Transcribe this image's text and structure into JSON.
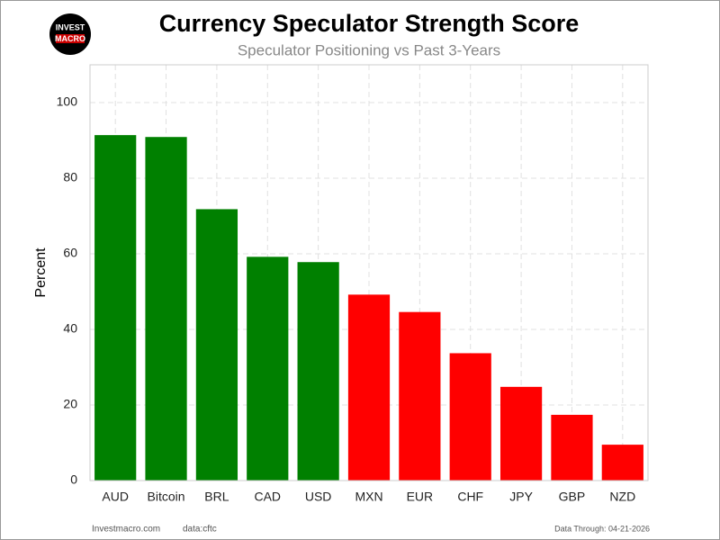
{
  "chart_data": {
    "type": "bar",
    "title": "Currency Speculator Strength Score",
    "subtitle": "Speculator Positioning vs Past 3-Years",
    "y_label": "Percent",
    "logo": {
      "line1": "INVEST",
      "line2": "MACRO"
    },
    "footer_left": "Investmacro.com",
    "footer_source": "data:cftc",
    "footer_right": "Data Through: 04-21-2026",
    "categories": [
      "AUD",
      "Bitcoin",
      "BRL",
      "CAD",
      "USD",
      "MXN",
      "EUR",
      "CHF",
      "JPY",
      "GBP",
      "NZD"
    ],
    "values": [
      91.4,
      90.9,
      71.8,
      59.2,
      57.8,
      49.2,
      44.6,
      33.7,
      24.8,
      17.4,
      9.5
    ],
    "colors": [
      "#008000",
      "#008000",
      "#008000",
      "#008000",
      "#008000",
      "#ff0000",
      "#ff0000",
      "#ff0000",
      "#ff0000",
      "#ff0000",
      "#ff0000"
    ],
    "ylim": [
      0,
      110
    ],
    "yticks": [
      0,
      20,
      40,
      60,
      80,
      100
    ],
    "grid": true
  }
}
